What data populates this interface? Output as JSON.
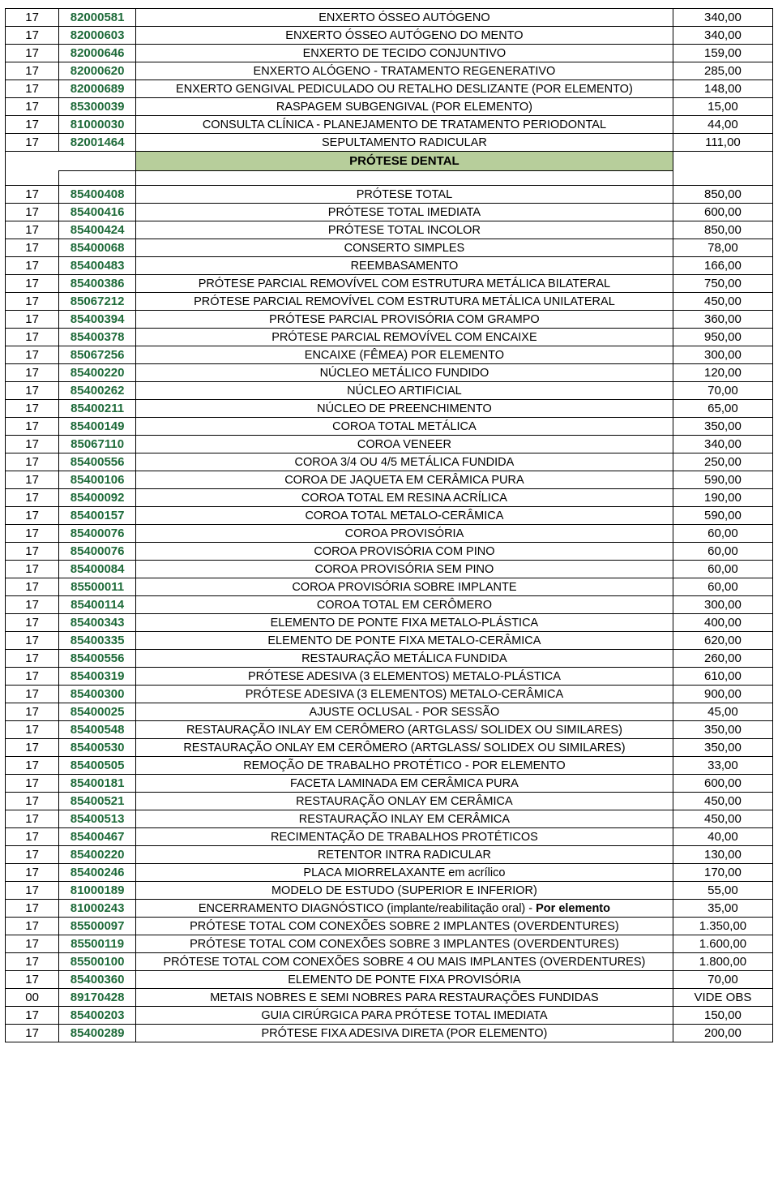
{
  "section_header": {
    "label": "PRÓTESE DENTAL",
    "bg": "#b7ce9b"
  },
  "code_color": "#1f6b3a",
  "rows_top": [
    {
      "cat": "17",
      "code": "82000581",
      "desc": "ENXERTO ÓSSEO AUTÓGENO",
      "price": "340,00"
    },
    {
      "cat": "17",
      "code": "82000603",
      "desc": "ENXERTO ÓSSEO AUTÓGENO DO MENTO",
      "price": "340,00"
    },
    {
      "cat": "17",
      "code": "82000646",
      "desc": "ENXERTO DE TECIDO CONJUNTIVO",
      "price": "159,00"
    },
    {
      "cat": "17",
      "code": "82000620",
      "desc": "ENXERTO ALÓGENO  - TRATAMENTO REGENERATIVO",
      "price": "285,00"
    },
    {
      "cat": "17",
      "code": "82000689",
      "desc": "ENXERTO GENGIVAL PEDICULADO OU RETALHO DESLIZANTE (POR ELEMENTO)",
      "price": "148,00"
    },
    {
      "cat": "17",
      "code": "85300039",
      "desc": "RASPAGEM SUBGENGIVAL (POR ELEMENTO)",
      "price": "15,00"
    },
    {
      "cat": "17",
      "code": "81000030",
      "desc": "CONSULTA CLÍNICA - PLANEJAMENTO DE TRATAMENTO PERIODONTAL",
      "price": "44,00"
    },
    {
      "cat": "17",
      "code": "82001464",
      "desc": "SEPULTAMENTO RADICULAR",
      "price": "111,00"
    }
  ],
  "rows_bottom": [
    {
      "cat": "17",
      "code": "85400408",
      "desc": "PRÓTESE TOTAL",
      "price": "850,00"
    },
    {
      "cat": "17",
      "code": "85400416",
      "desc": "PRÓTESE TOTAL IMEDIATA",
      "price": "600,00"
    },
    {
      "cat": "17",
      "code": "85400424",
      "desc": "PRÓTESE TOTAL INCOLOR",
      "price": "850,00"
    },
    {
      "cat": "17",
      "code": "85400068",
      "desc": "CONSERTO SIMPLES",
      "price": "78,00"
    },
    {
      "cat": "17",
      "code": "85400483",
      "desc": "REEMBASAMENTO",
      "price": "166,00"
    },
    {
      "cat": "17",
      "code": "85400386",
      "desc": "PRÓTESE PARCIAL REMOVÍVEL COM ESTRUTURA METÁLICA BILATERAL",
      "price": "750,00"
    },
    {
      "cat": "17",
      "code": "85067212",
      "desc": "PRÓTESE PARCIAL REMOVÍVEL COM ESTRUTURA METÁLICA UNILATERAL",
      "price": "450,00"
    },
    {
      "cat": "17",
      "code": "85400394",
      "desc": "PRÓTESE PARCIAL PROVISÓRIA COM GRAMPO",
      "price": "360,00"
    },
    {
      "cat": "17",
      "code": "85400378",
      "desc": "PRÓTESE PARCIAL REMOVÍVEL COM ENCAIXE",
      "price": "950,00"
    },
    {
      "cat": "17",
      "code": "85067256",
      "desc": "ENCAIXE (FÊMEA) POR ELEMENTO",
      "price": "300,00"
    },
    {
      "cat": "17",
      "code": "85400220",
      "desc": "NÚCLEO METÁLICO FUNDIDO",
      "price": "120,00"
    },
    {
      "cat": "17",
      "code": "85400262",
      "desc": "NÚCLEO ARTIFICIAL",
      "price": "70,00"
    },
    {
      "cat": "17",
      "code": "85400211",
      "desc": "NÚCLEO DE PREENCHIMENTO",
      "price": "65,00"
    },
    {
      "cat": "17",
      "code": "85400149",
      "desc": "COROA TOTAL METÁLICA",
      "price": "350,00"
    },
    {
      "cat": "17",
      "code": "85067110",
      "desc": "COROA VENEER",
      "price": "340,00"
    },
    {
      "cat": "17",
      "code": "85400556",
      "desc": "COROA 3/4 OU 4/5 METÁLICA FUNDIDA",
      "price": "250,00"
    },
    {
      "cat": "17",
      "code": "85400106",
      "desc": "COROA DE JAQUETA EM CERÂMICA PURA",
      "price": "590,00"
    },
    {
      "cat": "17",
      "code": "85400092",
      "desc": "COROA TOTAL EM RESINA ACRÍLICA",
      "price": "190,00"
    },
    {
      "cat": "17",
      "code": "85400157",
      "desc": "COROA TOTAL METALO-CERÂMICA",
      "price": "590,00"
    },
    {
      "cat": "17",
      "code": "85400076",
      "desc": "COROA PROVISÓRIA",
      "price": "60,00"
    },
    {
      "cat": "17",
      "code": "85400076",
      "desc": "COROA PROVISÓRIA COM PINO",
      "price": "60,00"
    },
    {
      "cat": "17",
      "code": "85400084",
      "desc": "COROA PROVISÓRIA SEM PINO",
      "price": "60,00"
    },
    {
      "cat": "17",
      "code": "85500011",
      "desc": "COROA PROVISÓRIA SOBRE IMPLANTE",
      "price": "60,00"
    },
    {
      "cat": "17",
      "code": "85400114",
      "desc": "COROA TOTAL EM CERÔMERO",
      "price": "300,00"
    },
    {
      "cat": "17",
      "code": "85400343",
      "desc": "ELEMENTO DE PONTE FIXA METALO-PLÁSTICA",
      "price": "400,00"
    },
    {
      "cat": "17",
      "code": "85400335",
      "desc": "ELEMENTO DE PONTE FIXA METALO-CERÂMICA",
      "price": "620,00"
    },
    {
      "cat": "17",
      "code": "85400556",
      "desc": "RESTAURAÇÃO METÁLICA FUNDIDA",
      "price": "260,00"
    },
    {
      "cat": "17",
      "code": "85400319",
      "desc": "PRÓTESE ADESIVA (3 ELEMENTOS) METALO-PLÁSTICA",
      "price": "610,00"
    },
    {
      "cat": "17",
      "code": "85400300",
      "desc": "PRÓTESE ADESIVA (3 ELEMENTOS) METALO-CERÂMICA",
      "price": "900,00"
    },
    {
      "cat": "17",
      "code": "85400025",
      "desc": "AJUSTE OCLUSAL - POR SESSÃO",
      "price": "45,00"
    },
    {
      "cat": "17",
      "code": "85400548",
      "desc": "RESTAURAÇÃO INLAY EM CERÔMERO (ARTGLASS/ SOLIDEX OU SIMILARES)",
      "price": "350,00"
    },
    {
      "cat": "17",
      "code": "85400530",
      "desc": "RESTAURAÇÃO ONLAY EM CERÔMERO (ARTGLASS/ SOLIDEX OU SIMILARES)",
      "price": "350,00"
    },
    {
      "cat": "17",
      "code": "85400505",
      "desc": "REMOÇÃO DE TRABALHO PROTÉTICO - POR ELEMENTO",
      "price": "33,00"
    },
    {
      "cat": "17",
      "code": "85400181",
      "desc": "FACETA LAMINADA EM CERÂMICA PURA",
      "price": "600,00"
    },
    {
      "cat": "17",
      "code": "85400521",
      "desc": "RESTAURAÇÃO ONLAY EM CERÂMICA",
      "price": "450,00"
    },
    {
      "cat": "17",
      "code": "85400513",
      "desc": "RESTAURAÇÃO INLAY EM CERÂMICA",
      "price": "450,00"
    },
    {
      "cat": "17",
      "code": "85400467",
      "desc": "RECIMENTAÇÃO DE TRABALHOS PROTÉTICOS",
      "price": "40,00"
    },
    {
      "cat": "17",
      "code": "85400220",
      "desc": "RETENTOR INTRA RADICULAR",
      "price": "130,00"
    },
    {
      "cat": "17",
      "code": "85400246",
      "desc": "PLACA MIORRELAXANTE em acrílico",
      "price": "170,00"
    },
    {
      "cat": "17",
      "code": "81000189",
      "desc": "MODELO DE ESTUDO (SUPERIOR E INFERIOR)",
      "price": "55,00"
    },
    {
      "cat": "17",
      "code": "81000243",
      "desc": "ENCERRAMENTO DIAGNÓSTICO (implante/reabilitação oral) -  <b>Por elemento</b>",
      "price": "35,00",
      "html": true
    },
    {
      "cat": "17",
      "code": "85500097",
      "desc": "PRÓTESE TOTAL  COM CONEXÕES SOBRE 2 IMPLANTES (OVERDENTURES)",
      "price": "1.350,00"
    },
    {
      "cat": "17",
      "code": "85500119",
      "desc": "PRÓTESE TOTAL  COM CONEXÕES SOBRE 3 IMPLANTES (OVERDENTURES)",
      "price": "1.600,00"
    },
    {
      "cat": "17",
      "code": "85500100",
      "desc": "PRÓTESE TOTAL  COM CONEXÕES SOBRE 4 OU MAIS IMPLANTES (OVERDENTURES)",
      "price": "1.800,00"
    },
    {
      "cat": "17",
      "code": "85400360",
      "desc": "ELEMENTO DE PONTE FIXA PROVISÓRIA",
      "price": "70,00"
    },
    {
      "cat": "00",
      "code": "89170428",
      "desc": "METAIS NOBRES E SEMI NOBRES PARA RESTAURAÇÕES FUNDIDAS",
      "price": "VIDE OBS"
    },
    {
      "cat": "17",
      "code": "85400203",
      "desc": "GUIA CIRÚRGICA PARA PRÓTESE TOTAL IMEDIATA",
      "price": "150,00"
    },
    {
      "cat": "17",
      "code": "85400289",
      "desc": "PRÓTESE FIXA ADESIVA DIRETA (POR ELEMENTO)",
      "price": "200,00"
    }
  ]
}
